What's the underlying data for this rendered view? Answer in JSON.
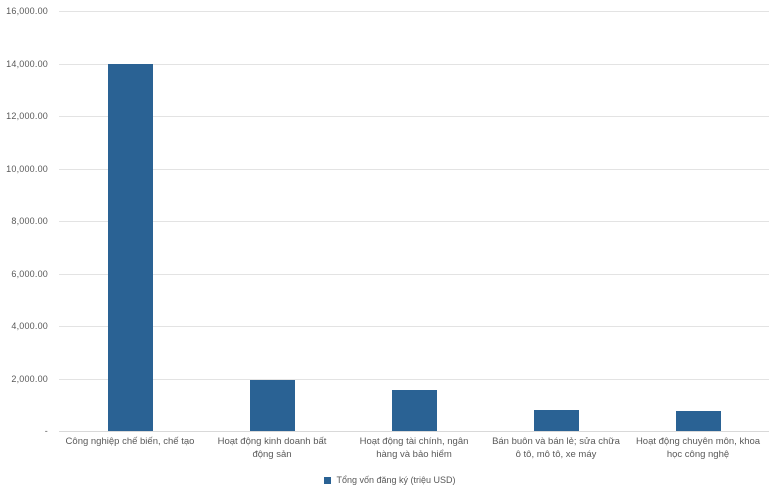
{
  "chart_data": {
    "type": "bar",
    "title": "",
    "xlabel": "",
    "ylabel": "",
    "categories": [
      "Công nghiệp chế biến, chế tạo",
      "Hoạt động kinh doanh bất động sản",
      "Hoạt động tài chính, ngân hàng và bảo hiểm",
      "Bán buôn và bán lẻ; sửa chữa ô tô, mô tô, xe máy",
      "Hoạt động chuyên môn, khoa học công nghệ"
    ],
    "category_display_lines": [
      [
        "Công nghiệp chế biến, chế tạo"
      ],
      [
        "Hoạt động kinh doanh bất",
        "động sản"
      ],
      [
        "Hoạt động tài chính, ngân",
        "hàng và bảo hiểm"
      ],
      [
        "Bán buôn và bán lẻ; sửa chữa",
        "ô tô, mô tô, xe máy"
      ],
      [
        "Hoạt động chuyên môn, khoa",
        "học công nghệ"
      ]
    ],
    "series": [
      {
        "name": "Tổng vốn đăng ký (triệu USD)",
        "values": [
          13970,
          1930,
          1550,
          800,
          780
        ]
      }
    ],
    "ylim": [
      0,
      16000
    ],
    "yticks": [
      {
        "value": 0,
        "label": "-"
      },
      {
        "value": 2000,
        "label": "2,000.00"
      },
      {
        "value": 4000,
        "label": "4,000.00"
      },
      {
        "value": 6000,
        "label": "6,000.00"
      },
      {
        "value": 8000,
        "label": "8,000.00"
      },
      {
        "value": 10000,
        "label": "10,000.00"
      },
      {
        "value": 12000,
        "label": "12,000.00"
      },
      {
        "value": 14000,
        "label": "14,000.00"
      },
      {
        "value": 16000,
        "label": "16,000.00"
      }
    ],
    "grid": true,
    "legend_position": "bottom",
    "colors": {
      "bar": "#2a6294",
      "gridline": "#e3e3e3",
      "axis_line": "#d9d9d9",
      "text": "#595959"
    }
  }
}
